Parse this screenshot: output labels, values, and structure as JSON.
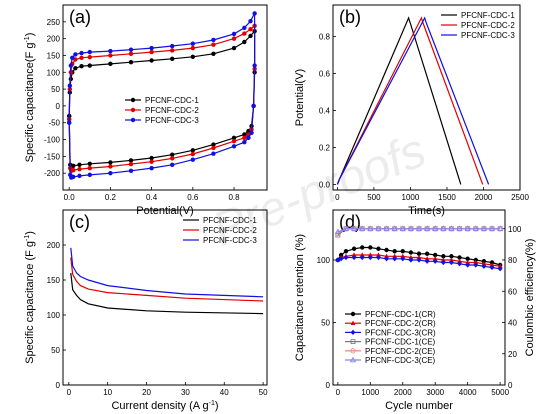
{
  "watermark": "Pre-proofs",
  "chart_data": [
    {
      "panel": "(a)",
      "type": "line",
      "xlabel": "Potential(V)",
      "ylabel": "Specific capacitance(F g",
      "ylabel_sup": "-1",
      "ylabel_end": ")",
      "xlim": [
        -0.03,
        0.96
      ],
      "ylim": [
        -250,
        300
      ],
      "xticks": [
        "0.0",
        "0.2",
        "0.4",
        "0.6",
        "0.8"
      ],
      "xtick_values": [
        0.0,
        0.2,
        0.4,
        0.6,
        0.8
      ],
      "yticks": [
        "-200",
        "-150",
        "-100",
        "-50",
        "0",
        "50",
        "100",
        "150",
        "200",
        "250"
      ],
      "ytick_values": [
        -200,
        -150,
        -100,
        -50,
        0,
        50,
        100,
        150,
        200,
        250
      ],
      "legend_position": "center",
      "series": [
        {
          "name": "PFCNF-CDC-1",
          "color": "#000000",
          "marker": "circle",
          "x": [
            0.0,
            0.003,
            0.008,
            0.015,
            0.03,
            0.06,
            0.1,
            0.2,
            0.3,
            0.4,
            0.5,
            0.6,
            0.7,
            0.8,
            0.85,
            0.88,
            0.9,
            0.9,
            0.895,
            0.885,
            0.87,
            0.85,
            0.8,
            0.7,
            0.6,
            0.5,
            0.4,
            0.3,
            0.2,
            0.1,
            0.05,
            0.02,
            0.01,
            0.005,
            0.0
          ],
          "y": [
            -30,
            40,
            80,
            100,
            112,
            118,
            120,
            125,
            130,
            135,
            140,
            146,
            155,
            172,
            190,
            208,
            222,
            100,
            0,
            -60,
            -75,
            -85,
            -95,
            -115,
            -132,
            -145,
            -155,
            -162,
            -168,
            -172,
            -175,
            -178,
            -180,
            -175,
            -30
          ]
        },
        {
          "name": "PFCNF-CDC-2",
          "color": "#e00000",
          "marker": "circle",
          "x": [
            0.0,
            0.003,
            0.008,
            0.015,
            0.03,
            0.06,
            0.1,
            0.2,
            0.3,
            0.4,
            0.5,
            0.6,
            0.7,
            0.8,
            0.85,
            0.88,
            0.9,
            0.9,
            0.895,
            0.885,
            0.87,
            0.85,
            0.8,
            0.7,
            0.6,
            0.5,
            0.4,
            0.3,
            0.2,
            0.1,
            0.05,
            0.02,
            0.01,
            0.005,
            0.0
          ],
          "y": [
            -40,
            50,
            100,
            125,
            138,
            143,
            145,
            150,
            155,
            160,
            165,
            172,
            182,
            200,
            215,
            228,
            238,
            110,
            0,
            -70,
            -85,
            -95,
            -105,
            -125,
            -143,
            -156,
            -166,
            -173,
            -180,
            -185,
            -188,
            -191,
            -193,
            -185,
            -40
          ]
        },
        {
          "name": "PFCNF-CDC-3",
          "color": "#1010e0",
          "marker": "circle",
          "x": [
            0.0,
            0.003,
            0.008,
            0.015,
            0.03,
            0.06,
            0.1,
            0.2,
            0.3,
            0.4,
            0.5,
            0.6,
            0.7,
            0.8,
            0.85,
            0.88,
            0.9,
            0.9,
            0.895,
            0.885,
            0.87,
            0.85,
            0.8,
            0.7,
            0.6,
            0.5,
            0.4,
            0.3,
            0.2,
            0.1,
            0.05,
            0.02,
            0.01,
            0.005,
            0.0
          ],
          "y": [
            -50,
            60,
            120,
            143,
            153,
            157,
            160,
            163,
            167,
            172,
            178,
            185,
            196,
            214,
            232,
            252,
            275,
            120,
            0,
            -80,
            -95,
            -108,
            -120,
            -142,
            -160,
            -175,
            -185,
            -193,
            -200,
            -205,
            -208,
            -211,
            -213,
            -205,
            -50
          ]
        }
      ]
    },
    {
      "panel": "(b)",
      "type": "line",
      "xlabel": "Time(s)",
      "ylabel": "Potential(V)",
      "xlim": [
        -60,
        2500
      ],
      "ylim": [
        -0.03,
        0.97
      ],
      "xticks": [
        "0",
        "500",
        "1000",
        "1500",
        "2000",
        "2500"
      ],
      "xtick_values": [
        0,
        500,
        1000,
        1500,
        2000,
        2500
      ],
      "yticks": [
        "0.0",
        "0.2",
        "0.4",
        "0.6",
        "0.8"
      ],
      "ytick_values": [
        0.0,
        0.2,
        0.4,
        0.6,
        0.8
      ],
      "legend_position": "top-right",
      "series": [
        {
          "name": "PFCNF-CDC-1",
          "color": "#000000",
          "x": [
            0,
            30,
            975,
            1000,
            1690
          ],
          "y": [
            0,
            0.03,
            0.9,
            0.87,
            0
          ]
        },
        {
          "name": "PFCNF-CDC-2",
          "color": "#e00000",
          "x": [
            0,
            30,
            1150,
            1175,
            1990
          ],
          "y": [
            0,
            0.03,
            0.9,
            0.87,
            0
          ]
        },
        {
          "name": "PFCNF-CDC-3",
          "color": "#1010e0",
          "x": [
            0,
            30,
            1195,
            1220,
            2070
          ],
          "y": [
            0,
            0.03,
            0.9,
            0.87,
            0
          ]
        }
      ]
    },
    {
      "panel": "(c)",
      "type": "line",
      "xlabel": "Current density (A g",
      "xlabel_sup": "-1",
      "xlabel_end": ")",
      "ylabel": "Specific capacitance (F g",
      "ylabel_sup": "-1",
      "ylabel_end": ")",
      "xlim": [
        -1.5,
        51
      ],
      "ylim": [
        0,
        250
      ],
      "xticks": [
        "0",
        "10",
        "20",
        "30",
        "40",
        "50"
      ],
      "xtick_values": [
        0,
        10,
        20,
        30,
        40,
        50
      ],
      "yticks": [
        "0",
        "50",
        "100",
        "150",
        "200"
      ],
      "ytick_values": [
        0,
        50,
        100,
        150,
        200
      ],
      "legend_position": "top-right",
      "series": [
        {
          "name": "PFCNF-CDC-1",
          "color": "#000000",
          "x": [
            0.5,
            1,
            2,
            3,
            5,
            10,
            20,
            30,
            50
          ],
          "y": [
            160,
            136,
            128,
            122,
            116,
            110,
            106,
            104,
            102
          ]
        },
        {
          "name": "PFCNF-CDC-2",
          "color": "#e00000",
          "x": [
            0.5,
            1,
            2,
            3,
            5,
            10,
            20,
            30,
            50
          ],
          "y": [
            182,
            158,
            148,
            142,
            137,
            132,
            128,
            124,
            120
          ]
        },
        {
          "name": "PFCNF-CDC-3",
          "color": "#1010e0",
          "x": [
            0.5,
            1,
            2,
            3,
            5,
            10,
            20,
            30,
            50
          ],
          "y": [
            196,
            170,
            160,
            155,
            150,
            142,
            135,
            130,
            126
          ]
        }
      ]
    },
    {
      "panel": "(d)",
      "type": "line",
      "xlabel": "Cycle number",
      "ylabel": "Capacitance retention (%)",
      "ylabel_right": "Coulombic efficiency(%)",
      "xlim": [
        -150,
        5150
      ],
      "ylim": [
        0,
        140
      ],
      "ylim_right": [
        0,
        112
      ],
      "xticks": [
        "0",
        "1000",
        "2000",
        "3000",
        "4000",
        "5000"
      ],
      "xtick_values": [
        0,
        1000,
        2000,
        3000,
        4000,
        5000
      ],
      "yticks": [
        "0",
        "50",
        "100"
      ],
      "ytick_values": [
        0,
        50,
        100
      ],
      "yticks_right": [
        "0",
        "20",
        "40",
        "60",
        "80",
        "100"
      ],
      "ytick_values_right": [
        0,
        20,
        40,
        60,
        80,
        100
      ],
      "legend_position": "bottom-left",
      "series": [
        {
          "name": "PFCNF-CDC-1(CR)",
          "color": "#000000",
          "marker": "circle",
          "axis": "left",
          "x": [
            0,
            100,
            250,
            500,
            750,
            1000,
            1250,
            1500,
            1750,
            2000,
            2250,
            2500,
            2750,
            3000,
            3250,
            3500,
            3750,
            4000,
            4250,
            4500,
            4750,
            5000
          ],
          "y": [
            100,
            104,
            107,
            109,
            110,
            110,
            109,
            108,
            107,
            107,
            106,
            105,
            105,
            104,
            103,
            103,
            102,
            101,
            100,
            99,
            98,
            96
          ]
        },
        {
          "name": "PFCNF-CDC-2(CR)",
          "color": "#e00000",
          "marker": "triangle",
          "axis": "left",
          "x": [
            0,
            100,
            250,
            500,
            750,
            1000,
            1250,
            1500,
            1750,
            2000,
            2250,
            2500,
            2750,
            3000,
            3250,
            3500,
            3750,
            4000,
            4250,
            4500,
            4750,
            5000
          ],
          "y": [
            100,
            102,
            103,
            104,
            104,
            104,
            104,
            103,
            103,
            103,
            102,
            102,
            101,
            101,
            100,
            100,
            99,
            98,
            98,
            97,
            96,
            95
          ]
        },
        {
          "name": "PFCNF-CDC-3(CR)",
          "color": "#1010e0",
          "marker": "diamond",
          "axis": "left",
          "x": [
            0,
            100,
            250,
            500,
            750,
            1000,
            1250,
            1500,
            1750,
            2000,
            2250,
            2500,
            2750,
            3000,
            3250,
            3500,
            3750,
            4000,
            4250,
            4500,
            4750,
            5000
          ],
          "y": [
            100,
            101,
            102,
            102,
            102,
            102,
            102,
            101,
            101,
            101,
            100,
            100,
            99,
            99,
            98,
            98,
            97,
            96,
            96,
            95,
            94,
            93
          ]
        },
        {
          "name": "PFCNF-CDC-1(CE)",
          "color": "#777777",
          "marker": "square-open",
          "axis": "right",
          "x": [
            0,
            250,
            500,
            750,
            1000,
            1250,
            1500,
            1750,
            2000,
            2250,
            2500,
            2750,
            3000,
            3250,
            3500,
            3750,
            4000,
            4250,
            4500,
            4750,
            5000
          ],
          "y": [
            96,
            100,
            100,
            100,
            100,
            100,
            100,
            100,
            100,
            100,
            100,
            100,
            100,
            100,
            100,
            100,
            100,
            100,
            100,
            100,
            100
          ]
        },
        {
          "name": "PFCNF-CDC-2(CE)",
          "color": "#f08080",
          "marker": "circle-open",
          "axis": "right",
          "x": [
            0,
            250,
            500,
            750,
            1000,
            1250,
            1500,
            1750,
            2000,
            2250,
            2500,
            2750,
            3000,
            3250,
            3500,
            3750,
            4000,
            4250,
            4500,
            4750,
            5000
          ],
          "y": [
            97,
            100,
            100,
            100,
            100,
            100,
            100,
            100,
            100,
            100,
            100,
            100,
            100,
            100,
            100,
            100,
            100,
            100,
            100,
            100,
            100
          ]
        },
        {
          "name": "PFCNF-CDC-3(CE)",
          "color": "#8080f0",
          "marker": "triangle-open",
          "axis": "right",
          "x": [
            0,
            250,
            500,
            750,
            1000,
            1250,
            1500,
            1750,
            2000,
            2250,
            2500,
            2750,
            3000,
            3250,
            3500,
            3750,
            4000,
            4250,
            4500,
            4750,
            5000
          ],
          "y": [
            98,
            100,
            100,
            100,
            100,
            100,
            100,
            100,
            100,
            100,
            100,
            100,
            100,
            100,
            100,
            100,
            100,
            100,
            100,
            100,
            100
          ]
        }
      ]
    }
  ]
}
